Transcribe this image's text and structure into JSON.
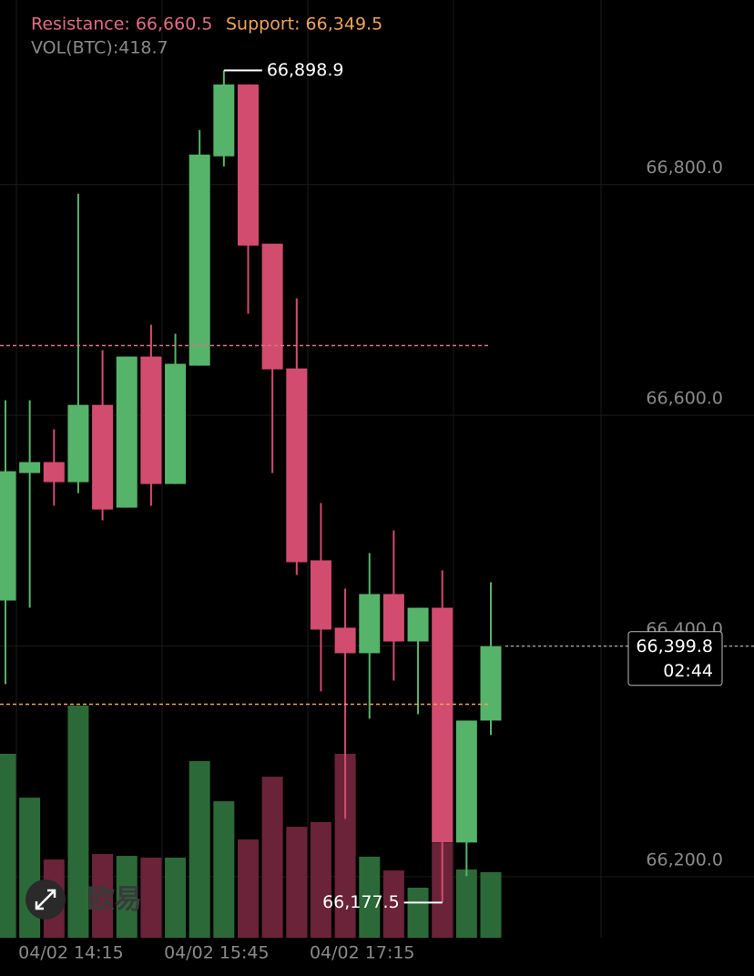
{
  "chart_data": {
    "type": "candlestick",
    "volume_readout": "VOL(BTC):418.7",
    "resistance": {
      "value": 66660.5,
      "label": "Resistance: 66,660.5"
    },
    "support": {
      "value": 66349.5,
      "label": "Support: 66,349.5"
    },
    "high_marker": {
      "value": 66898.9,
      "label": "66,898.9"
    },
    "low_marker": {
      "value": 66177.5,
      "label": "66,177.5"
    },
    "current_price": {
      "value": 66399.8,
      "label": "66,399.8",
      "countdown": "02:44"
    },
    "watermark": "欧易",
    "categories": [
      null,
      null,
      null,
      "04/02 14:15",
      null,
      null,
      null,
      null,
      null,
      "04/02 15:45",
      null,
      null,
      null,
      null,
      null,
      "04/02 17:15",
      null,
      null,
      null,
      null,
      null
    ],
    "open": [
      66439.4,
      66549.9,
      66559.4,
      66542,
      66609,
      66519.9,
      66650.9,
      66540.4,
      66643,
      66824.5,
      66886.8,
      66748.7,
      66640.6,
      66474.2,
      66415.8,
      66393.7,
      66445,
      66403.9,
      66433.1,
      66229.6,
      66335.3
    ],
    "high": [
      66613,
      66613,
      66587.8,
      66792.1,
      66656.4,
      66650.9,
      66678.5,
      66670.6,
      66847.3,
      66898.9,
      66886.8,
      66748.7,
      66701.4,
      66523.9,
      66449.7,
      66480.5,
      66500.2,
      66433.1,
      66465.5,
      66335.3,
      66455.2
    ],
    "low": [
      66366.9,
      66433.1,
      66521.5,
      66532.5,
      66508.9,
      66519.9,
      66521.5,
      66540.4,
      66643,
      66815.8,
      66688,
      66549.9,
      66461.5,
      66360.6,
      66250.1,
      66336.9,
      66370,
      66340.8,
      66177.5,
      66200.4,
      66322.7
    ],
    "close": [
      66551.5,
      66559.4,
      66542,
      66609,
      66518.3,
      66650.9,
      66540.4,
      66644.6,
      66826,
      66886.8,
      66747.1,
      66639.8,
      66472.6,
      66414.2,
      66393.7,
      66445,
      66403.9,
      66433.1,
      66229.6,
      66335.3,
      66399.8
    ],
    "volumes": [
      1175,
      895,
      500,
      1483,
      535,
      523,
      512,
      512,
      1128,
      872,
      628,
      1029,
      709,
      739,
      1175,
      518,
      430,
      320,
      605,
      436,
      418.7
    ],
    "ylim": [
      66147,
      66960
    ],
    "y2lim": [
      0,
      5990
    ],
    "yticks": [
      {
        "value": 66200,
        "label": "66,200.0"
      },
      {
        "value": 66400,
        "label": "66,400.0"
      },
      {
        "value": 66600,
        "label": "66,600.0"
      },
      {
        "value": 66800,
        "label": "66,800.0"
      }
    ],
    "up_color": "#56b46a",
    "down_color": "#d24c6f",
    "up_volume_color": "#2b6a38",
    "down_volume_color": "#6a2338",
    "resistance_color": "#e06d86",
    "support_color": "#f0a35a",
    "grid": true
  }
}
